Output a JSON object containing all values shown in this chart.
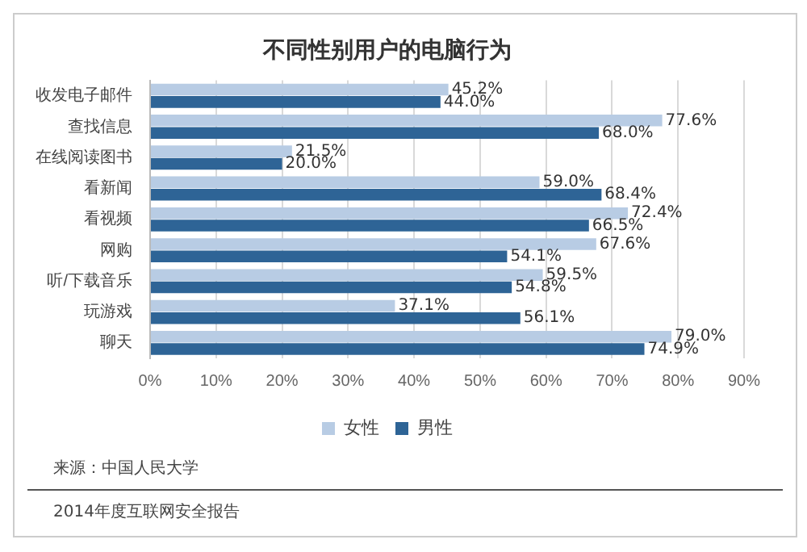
{
  "chart_data": {
    "type": "bar",
    "orientation": "horizontal",
    "title": "不同性别用户的电脑行为",
    "categories": [
      "收发电子邮件",
      "查找信息",
      "在线阅读图书",
      "看新闻",
      "看视频",
      "网购",
      "听/下载音乐",
      "玩游戏",
      "聊天"
    ],
    "series": [
      {
        "name": "女性",
        "color": "#b8cce4",
        "values": [
          45.2,
          77.6,
          21.5,
          59.0,
          72.4,
          67.6,
          59.5,
          37.1,
          79.0
        ],
        "value_labels": [
          "45.2%",
          "77.6%",
          "21.5%",
          "59.0%",
          "72.4%",
          "67.6%",
          "59.5%",
          "37.1%",
          "79.0%"
        ]
      },
      {
        "name": "男性",
        "color": "#2e6496",
        "values": [
          44.0,
          68.0,
          20.0,
          68.4,
          66.5,
          54.1,
          54.8,
          56.1,
          74.9
        ],
        "value_labels": [
          "44.0%",
          "68.0%",
          "20.0%",
          "68.4%",
          "66.5%",
          "54.1%",
          "54.8%",
          "56.1%",
          "74.9%"
        ]
      }
    ],
    "xlim": [
      0,
      90
    ],
    "xticks": [
      {
        "value": 0,
        "label": "0%"
      },
      {
        "value": 10,
        "label": "10%"
      },
      {
        "value": 20,
        "label": "20%"
      },
      {
        "value": 30,
        "label": "30%"
      },
      {
        "value": 40,
        "label": "40%"
      },
      {
        "value": 50,
        "label": "50%"
      },
      {
        "value": 60,
        "label": "60%"
      },
      {
        "value": 70,
        "label": "70%"
      },
      {
        "value": 80,
        "label": "80%"
      },
      {
        "value": 90,
        "label": "90%"
      }
    ],
    "grid": "x",
    "legend": "bottom",
    "annotations": [
      "来源：中国人民大学",
      "2014年度互联网安全报告"
    ]
  }
}
